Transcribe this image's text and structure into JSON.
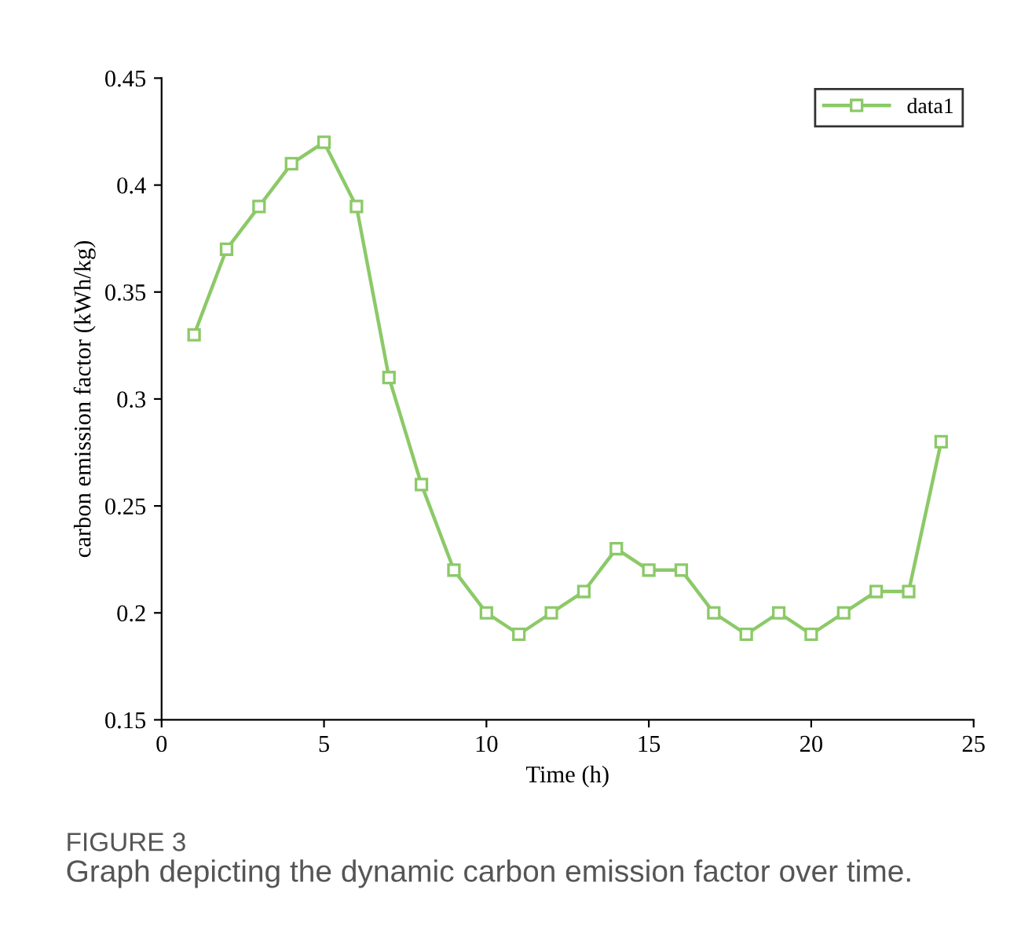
{
  "chart_data": {
    "type": "line",
    "xlabel": "Time (h)",
    "ylabel": "carbon emission factor (kWh/kg)",
    "x": [
      1,
      2,
      3,
      4,
      5,
      6,
      7,
      8,
      9,
      10,
      11,
      12,
      13,
      14,
      15,
      16,
      17,
      18,
      19,
      20,
      21,
      22,
      23,
      24
    ],
    "series": [
      {
        "name": "data1",
        "color": "#8cc968",
        "values": [
          0.33,
          0.37,
          0.39,
          0.41,
          0.42,
          0.39,
          0.31,
          0.26,
          0.22,
          0.2,
          0.19,
          0.2,
          0.21,
          0.23,
          0.22,
          0.22,
          0.2,
          0.19,
          0.2,
          0.19,
          0.2,
          0.21,
          0.21,
          0.28
        ]
      }
    ],
    "xlim": [
      0,
      25
    ],
    "xticks": [
      0,
      5,
      10,
      15,
      20,
      25
    ],
    "ylim": [
      0.15,
      0.45
    ],
    "yticks": [
      0.15,
      0.2,
      0.25,
      0.3,
      0.35,
      0.4,
      0.45
    ],
    "marker": "square",
    "line_style": "solid",
    "legend": "top right",
    "grid": false,
    "annotations": [
      "FIGURE 3",
      "Graph depicting the dynamic carbon emission factor over time."
    ]
  }
}
